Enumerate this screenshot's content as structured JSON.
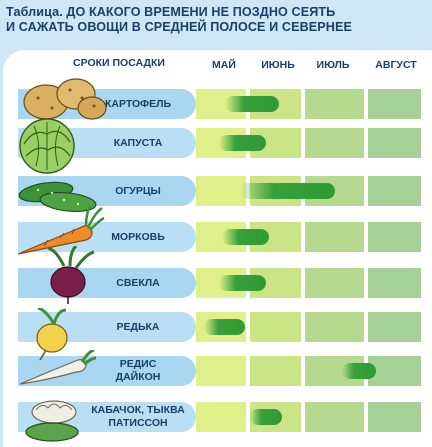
{
  "title": {
    "line1": "Таблица. ДО КАКОГО ВРЕМЕНИ НЕ ПОЗДНО СЕЯТЬ",
    "line2": "И САЖАТЬ ОВОЩИ В СРЕДНЕЙ ПОЛОСЕ И СЕВЕРНЕЕ"
  },
  "header": {
    "row_label": "СРОКИ ПОСАДКИ",
    "months": [
      "МАЙ",
      "ИЮНЬ",
      "ИЮЛЬ",
      "АВГУСТ"
    ]
  },
  "colors": {
    "bar": "#2f9a35",
    "month_cells": [
      "#dfef8a",
      "#cbe586",
      "#b5d98e",
      "#a6d196"
    ],
    "row_band": "#a9d6f1",
    "text": "#1b3f66"
  },
  "chart_data": {
    "type": "bar",
    "title": "Таблица. ДО КАКОГО ВРЕМЕНИ НЕ ПОЗДНО СЕЯТЬ И САЖАТЬ ОВОЩИ В СРЕДНЕЙ ПОЛОСЕ И СЕВЕРНЕЕ",
    "orientation": "horizontal-range",
    "x_unit": "month",
    "x_categories": [
      "МАЙ",
      "ИЮНЬ",
      "ИЮЛЬ",
      "АВГУСТ"
    ],
    "xlim": [
      0,
      4
    ],
    "rows": [
      {
        "label_lines": [
          "КАРТОФЕЛЬ"
        ],
        "start": 0.55,
        "end": 1.55
      },
      {
        "label_lines": [
          "КАПУСТА"
        ],
        "start": 0.45,
        "end": 1.3
      },
      {
        "label_lines": [
          "ОГУРЦЫ"
        ],
        "start": 0.85,
        "end": 2.5
      },
      {
        "label_lines": [
          "МОРКОВЬ"
        ],
        "start": 0.5,
        "end": 1.35
      },
      {
        "label_lines": [
          "СВЕКЛА"
        ],
        "start": 0.45,
        "end": 1.3
      },
      {
        "label_lines": [
          "РЕДЬКА"
        ],
        "start": 0.15,
        "end": 0.95
      },
      {
        "label_lines": [
          "РЕДИС",
          "ДАЙКОН"
        ],
        "start": 2.6,
        "end": 3.15
      },
      {
        "label_lines": [
          "КАБАЧОК, ТЫКВА",
          "ПАТИССОН"
        ],
        "start": 1.0,
        "end": 1.6
      }
    ]
  }
}
